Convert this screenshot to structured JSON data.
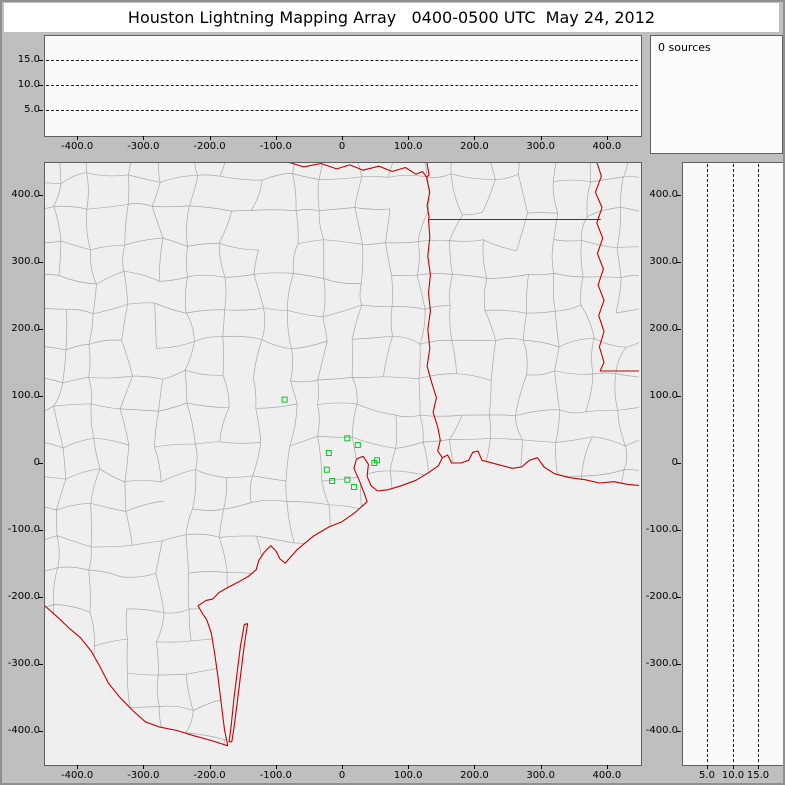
{
  "title": "Houston Lightning Mapping Array   0400-0500 UTC  May 24, 2012",
  "sources_panel": {
    "label": "0 sources"
  },
  "colors": {
    "frame_gray": "#bfbfbf",
    "panel_background": "#fafafa",
    "map_background": "#efefef",
    "county_boundary": "#a8a8a8",
    "state_border_red": "#c40000",
    "gridline_black": "#1a1a1a",
    "station_green": "#00cc22"
  },
  "chart_data": [
    {
      "name": "altitude-vs-east-west",
      "type": "scatter",
      "xlim": [
        -450,
        450
      ],
      "ylim": [
        0,
        20
      ],
      "x_ticks": [
        -400,
        -300,
        -200,
        -100,
        0,
        100,
        200,
        300,
        400
      ],
      "x_tick_labels": [
        "-400.0",
        "-300.0",
        "-200.0",
        "-100.0",
        "0",
        "100.0",
        "200.0",
        "300.0",
        "400.0"
      ],
      "y_gridlines": [
        5,
        10,
        15
      ],
      "y_gridline_labels": [
        "5.0",
        "10.0",
        "15.0"
      ],
      "points": []
    },
    {
      "name": "plan-view-map",
      "type": "scatter",
      "xlim": [
        -450,
        450
      ],
      "ylim": [
        -450,
        450
      ],
      "x_ticks": [
        -400,
        -300,
        -200,
        -100,
        0,
        100,
        200,
        300,
        400
      ],
      "x_tick_labels": [
        "-400.0",
        "-300.0",
        "-200.0",
        "-100.0",
        "0",
        "100.0",
        "200.0",
        "300.0",
        "400.0"
      ],
      "y_ticks": [
        400,
        300,
        200,
        100,
        0,
        -100,
        -200,
        -300,
        -400
      ],
      "y_tick_labels": [
        "400.0",
        "300.0",
        "200.0",
        "100.0",
        "0",
        "-100.0",
        "-200.0",
        "-300.0",
        "-400.0"
      ],
      "station_markers_km": [
        [
          -87,
          95
        ],
        [
          8,
          37
        ],
        [
          -20,
          15
        ],
        [
          24,
          27
        ],
        [
          -23,
          -10
        ],
        [
          -15,
          -27
        ],
        [
          8,
          -25
        ],
        [
          18,
          -36
        ],
        [
          49,
          0
        ],
        [
          53,
          4
        ]
      ],
      "points": []
    },
    {
      "name": "altitude-vs-north-south",
      "type": "scatter",
      "xlim": [
        0,
        20
      ],
      "ylim": [
        -450,
        450
      ],
      "x_gridlines": [
        5,
        10,
        15
      ],
      "x_gridline_labels": [
        "5.0",
        "10.0",
        "15.0"
      ],
      "y_ticks": [
        400,
        300,
        200,
        100,
        0,
        -100,
        -200,
        -300,
        -400
      ],
      "y_tick_labels": [
        "400.0",
        "300.0",
        "200.0",
        "100.0",
        "0",
        "-100.0",
        "-200.0",
        "-300.0",
        "-400.0"
      ],
      "points": []
    }
  ]
}
